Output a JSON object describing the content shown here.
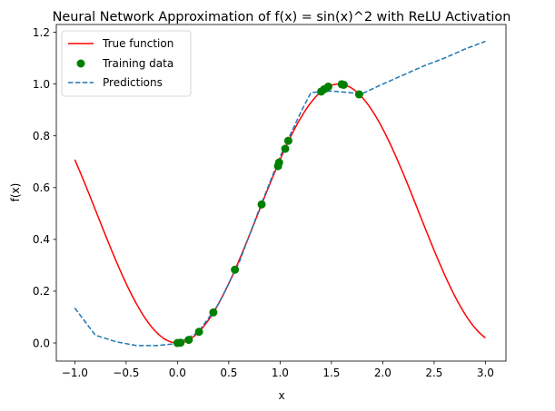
{
  "chart_data": {
    "type": "line",
    "title": "Neural Network Approximation of f(x) = sin(x)^2 with ReLU Activation",
    "xlabel": "x",
    "ylabel": "f(x)",
    "xlim": [
      -1.18,
      3.2
    ],
    "ylim": [
      -0.07,
      1.23
    ],
    "xticks": [
      -1.0,
      -0.5,
      0.0,
      0.5,
      1.0,
      1.5,
      2.0,
      2.5,
      3.0
    ],
    "xtick_labels": [
      "−1.0",
      "−0.5",
      "0.0",
      "0.5",
      "1.0",
      "1.5",
      "2.0",
      "2.5",
      "3.0"
    ],
    "yticks": [
      0.0,
      0.2,
      0.4,
      0.6,
      0.8,
      1.0,
      1.2
    ],
    "ytick_labels": [
      "0.0",
      "0.2",
      "0.4",
      "0.6",
      "0.8",
      "1.0",
      "1.2"
    ],
    "grid": false,
    "legend_position": "top-left",
    "series": [
      {
        "name": "True function",
        "kind": "line",
        "color": "#ff0000",
        "function": "sin(x)^2",
        "x_range": [
          -1.0,
          3.0
        ]
      },
      {
        "name": "Training data",
        "kind": "scatter",
        "color": "#008000",
        "x": [
          0.0,
          0.03,
          0.11,
          0.21,
          0.35,
          0.56,
          0.82,
          0.98,
          0.99,
          1.05,
          1.08,
          1.4,
          1.43,
          1.47,
          1.6,
          1.62,
          1.77
        ],
        "y": [
          0.0,
          0.001,
          0.012,
          0.043,
          0.118,
          0.283,
          0.535,
          0.683,
          0.697,
          0.75,
          0.781,
          0.971,
          0.98,
          0.99,
          0.999,
          0.997,
          0.96
        ]
      },
      {
        "name": "Predictions",
        "kind": "line",
        "style": "dashed",
        "color": "#1f77b4",
        "x": [
          -1.0,
          -0.8,
          -0.6,
          -0.4,
          -0.2,
          0.0,
          0.2,
          0.4,
          0.6,
          0.8,
          1.0,
          1.2,
          1.3,
          1.5,
          1.7,
          1.8,
          2.0,
          2.2,
          2.4,
          2.6,
          2.8,
          3.0
        ],
        "y": [
          0.135,
          0.03,
          0.005,
          -0.01,
          -0.01,
          -0.002,
          0.04,
          0.15,
          0.31,
          0.52,
          0.72,
          0.89,
          0.967,
          0.973,
          0.966,
          0.963,
          1.0,
          1.035,
          1.07,
          1.1,
          1.135,
          1.165
        ]
      }
    ]
  }
}
